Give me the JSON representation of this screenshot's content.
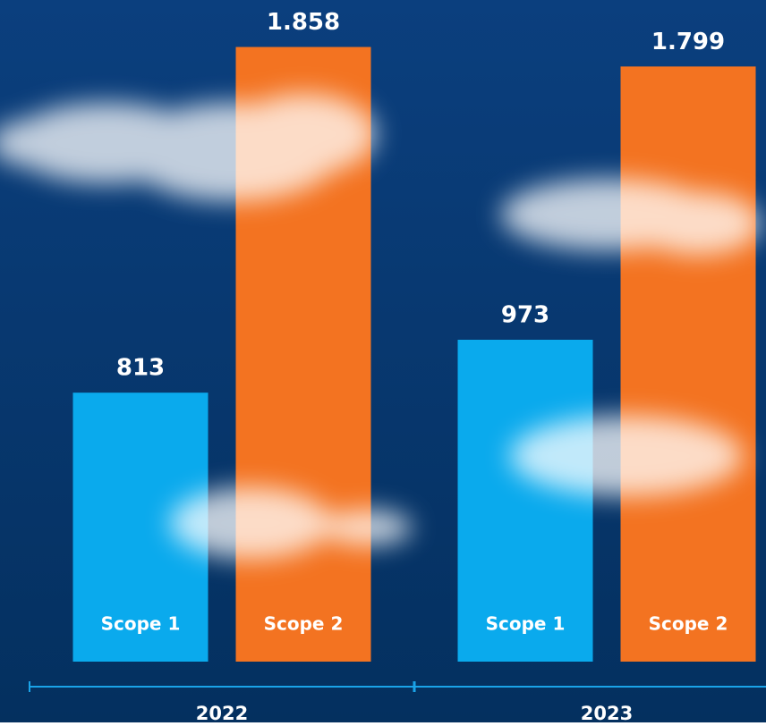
{
  "chart_data": {
    "type": "bar",
    "categories": [
      "2022",
      "2023"
    ],
    "series": [
      {
        "name": "Scope 1",
        "color": "#0aaaed",
        "values": [
          813,
          973
        ],
        "value_labels": [
          "813",
          "973"
        ]
      },
      {
        "name": "Scope 2",
        "color": "#f37321",
        "values": [
          1858,
          1799
        ],
        "value_labels": [
          "1.858",
          "1.799"
        ]
      }
    ],
    "ylim": [
      0,
      2000
    ]
  }
}
